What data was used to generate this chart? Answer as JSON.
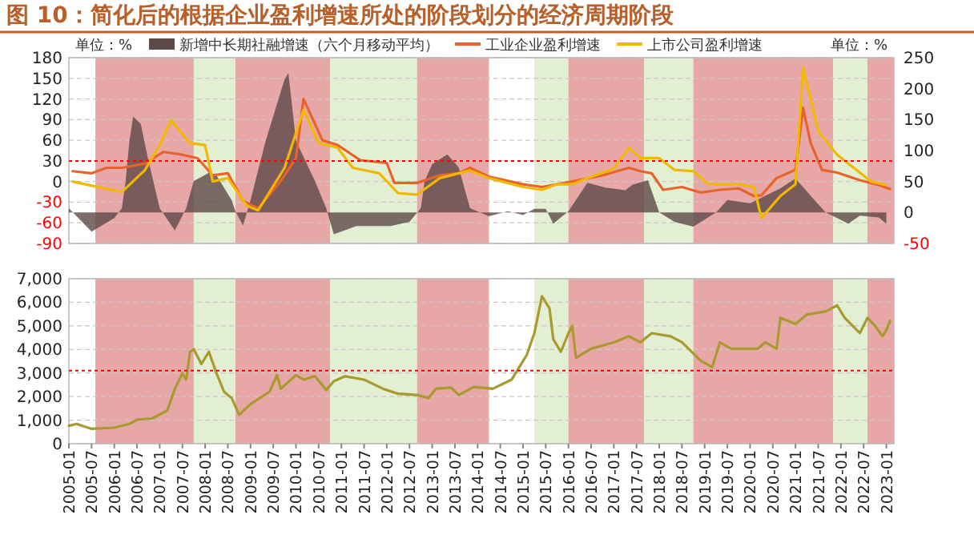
{
  "chart_data": [
    {
      "type": "area",
      "title": "图 10：简化后的根据企业盈利增速所处的阶段划分的经济周期阶段",
      "annotations": [
        "单位：%",
        "单位：%"
      ],
      "legend": "top",
      "grid": "y",
      "tick_labels": "y",
      "xlim": [
        "2005-01",
        "2023-03"
      ],
      "ylim": [
        -90,
        180
      ],
      "yticks": [
        -90,
        -60,
        -30,
        0,
        30,
        60,
        90,
        120,
        150,
        180
      ],
      "y2lim": [
        -50,
        250
      ],
      "y2ticks": [
        -50,
        0,
        50,
        100,
        150,
        200,
        250
      ],
      "series": [
        {
          "name": "新增中长期社融增速（六个月移动平均）",
          "axis": "y2",
          "color": "#5e4848",
          "x": [
            "2005-01",
            "2005-07",
            "2006-01",
            "2006-03",
            "2006-04",
            "2006-05",
            "2006-06",
            "2006-08",
            "2006-10",
            "2007-01",
            "2007-05",
            "2007-08",
            "2007-10",
            "2008-02",
            "2008-04",
            "2008-08",
            "2008-09",
            "2008-11",
            "2009-01",
            "2009-05",
            "2009-10",
            "2009-11",
            "2010-01",
            "2010-06",
            "2010-09",
            "2010-11",
            "2011-05",
            "2012-02",
            "2012-07",
            "2012-10",
            "2012-11",
            "2013-01",
            "2013-05",
            "2013-08",
            "2013-11",
            "2014-04",
            "2014-09",
            "2015-01",
            "2015-04",
            "2015-07",
            "2015-09",
            "2016-01",
            "2016-06",
            "2016-11",
            "2017-04",
            "2017-06",
            "2017-10",
            "2018-01",
            "2018-05",
            "2018-10",
            "2019-04",
            "2019-07",
            "2020-01",
            "2020-09",
            "2021-01",
            "2021-06",
            "2021-09",
            "2022-03",
            "2022-06",
            "2022-11",
            "2023-01"
          ],
          "values": [
            7,
            -31,
            -9,
            7,
            51,
            116,
            155,
            143,
            84,
            7,
            -29,
            7,
            51,
            64,
            60,
            20,
            2,
            -21,
            20,
            116,
            215,
            225,
            116,
            51,
            7,
            -35,
            -22,
            -22,
            -15,
            7,
            51,
            78,
            94,
            73,
            7,
            -6,
            2,
            -4,
            6,
            6,
            -18,
            2,
            48,
            40,
            36,
            45,
            52,
            0,
            -15,
            -23,
            0,
            20,
            15,
            39,
            55,
            20,
            0,
            -18,
            -5,
            -8,
            -18
          ]
        },
        {
          "name": "工业企业盈利增速",
          "type": "line",
          "axis": "y",
          "color": "#e8632a",
          "x": [
            "2005-02",
            "2005-07",
            "2005-11",
            "2006-03",
            "2006-09",
            "2007-02",
            "2007-06",
            "2007-11",
            "2008-03",
            "2008-07",
            "2008-11",
            "2009-03",
            "2009-09",
            "2010-01",
            "2010-03",
            "2010-08",
            "2010-12",
            "2011-06",
            "2012-01",
            "2012-03",
            "2012-09",
            "2013-03",
            "2013-08",
            "2013-11",
            "2014-04",
            "2015-01",
            "2015-06",
            "2016-02",
            "2016-10",
            "2017-05",
            "2017-08",
            "2017-11",
            "2018-02",
            "2018-07",
            "2018-12",
            "2019-05",
            "2019-10",
            "2020-02",
            "2020-04",
            "2020-08",
            "2021-01",
            "2021-03",
            "2021-05",
            "2021-08",
            "2021-12",
            "2022-06",
            "2022-11",
            "2023-02"
          ],
          "values": [
            15,
            12,
            20,
            20,
            26,
            43,
            40,
            34,
            9,
            12,
            -28,
            -39,
            1,
            34,
            120,
            60,
            53,
            31,
            27,
            -2,
            -2,
            9,
            12,
            20,
            7,
            -4,
            -8,
            0,
            9,
            20,
            15,
            12,
            -12,
            -8,
            -16,
            -12,
            -10,
            -21,
            -20,
            5,
            17,
            107,
            56,
            17,
            13,
            2,
            -5,
            -11
          ]
        },
        {
          "name": "上市公司盈利增速",
          "type": "line",
          "axis": "y",
          "color": "#f2b800",
          "x": [
            "2005-02",
            "2005-07",
            "2006-03",
            "2006-09",
            "2007-01",
            "2007-04",
            "2007-09",
            "2008-01",
            "2008-03",
            "2008-07",
            "2008-12",
            "2009-03",
            "2009-10",
            "2010-03",
            "2010-07",
            "2010-12",
            "2011-04",
            "2011-11",
            "2012-04",
            "2012-09",
            "2013-03",
            "2013-11",
            "2014-04",
            "2015-01",
            "2015-06",
            "2015-10",
            "2016-02",
            "2016-07",
            "2017-01",
            "2017-05",
            "2017-08",
            "2018-01",
            "2018-05",
            "2018-10",
            "2019-02",
            "2019-10",
            "2020-02",
            "2020-04",
            "2020-09",
            "2021-01",
            "2021-03",
            "2021-07",
            "2021-12",
            "2022-06",
            "2022-09",
            "2023-01"
          ],
          "values": [
            0,
            -6,
            -15,
            16,
            53,
            89,
            56,
            53,
            0,
            5,
            -35,
            -42,
            20,
            104,
            56,
            49,
            20,
            12,
            -17,
            -19,
            5,
            16,
            5,
            -8,
            -12,
            -4,
            -4,
            7,
            19,
            49,
            34,
            34,
            17,
            15,
            -4,
            -4,
            -8,
            -53,
            -21,
            -4,
            166,
            73,
            39,
            13,
            0,
            -5
          ]
        }
      ],
      "ref_lines": [
        {
          "axis": "y",
          "value": 30,
          "color": "#ff0000",
          "line_style": "dotted"
        }
      ],
      "bands": [
        {
          "axis": "x",
          "from": "2005-08",
          "to": "2007-10",
          "color": "#e8a7a7"
        },
        {
          "axis": "x",
          "from": "2007-10",
          "to": "2008-09",
          "color": "#e3efd3"
        },
        {
          "axis": "x",
          "from": "2008-09",
          "to": "2010-10",
          "color": "#e8a7a7"
        },
        {
          "axis": "x",
          "from": "2010-10",
          "to": "2012-09",
          "color": "#e3efd3"
        },
        {
          "axis": "x",
          "from": "2012-09",
          "to": "2014-04",
          "color": "#e8a7a7"
        },
        {
          "axis": "x",
          "from": "2015-04",
          "to": "2016-01",
          "color": "#e3efd3"
        },
        {
          "axis": "x",
          "from": "2016-01",
          "to": "2017-09",
          "color": "#e8a7a7"
        },
        {
          "axis": "x",
          "from": "2017-09",
          "to": "2018-10",
          "color": "#e3efd3"
        },
        {
          "axis": "x",
          "from": "2018-10",
          "to": "2021-11",
          "color": "#e8a7a7"
        },
        {
          "axis": "x",
          "from": "2021-11",
          "to": "2022-08",
          "color": "#e3efd3"
        },
        {
          "axis": "x",
          "from": "2022-08",
          "to": "2023-03",
          "color": "#e8a7a7"
        }
      ]
    },
    {
      "type": "line",
      "grid": "y",
      "xlim": [
        "2005-01",
        "2023-03"
      ],
      "ylim": [
        0,
        7000
      ],
      "yticks": [
        0,
        {
          "value": 1000,
          "label": "1,000"
        },
        {
          "value": 2000,
          "label": "2,000"
        },
        {
          "value": 3000,
          "label": "3,000"
        },
        {
          "value": 4000,
          "label": "4,000"
        },
        {
          "value": 5000,
          "label": "5,000"
        },
        {
          "value": 6000,
          "label": "6,000"
        },
        {
          "value": 7000,
          "label": "7,000"
        }
      ],
      "xticks": [
        {
          "value": "2005-01",
          "label": "2005-01"
        },
        {
          "value": "2005-07",
          "label": "2005-07"
        },
        {
          "value": "2006-01",
          "label": "2006-01"
        },
        {
          "value": "2006-07",
          "label": "2006-07"
        },
        {
          "value": "2007-01",
          "label": "2007-01"
        },
        {
          "value": "2007-07",
          "label": "2007-07"
        },
        {
          "value": "2008-01",
          "label": "2008-01"
        },
        {
          "value": "2008-07",
          "label": "2008-07"
        },
        {
          "value": "2009-01",
          "label": "2009-01"
        },
        {
          "value": "2009-07",
          "label": "2009-07"
        },
        {
          "value": "2010-01",
          "label": "2010-01"
        },
        {
          "value": "2010-07",
          "label": "2010-07"
        },
        {
          "value": "2011-01",
          "label": "2011-01"
        },
        {
          "value": "2011-07",
          "label": "2011-07"
        },
        {
          "value": "2012-01",
          "label": "2012-01"
        },
        {
          "value": "2012-07",
          "label": "2012-07"
        },
        {
          "value": "2013-01",
          "label": "2013-01"
        },
        {
          "value": "2013-07",
          "label": "2013-07"
        },
        {
          "value": "2014-01",
          "label": "2014-01"
        },
        {
          "value": "2014-07",
          "label": "2014-07"
        },
        {
          "value": "2015-01",
          "label": "2015-01"
        },
        {
          "value": "2015-07",
          "label": "2015-07"
        },
        {
          "value": "2016-01",
          "label": "2016-01"
        },
        {
          "value": "2016-07",
          "label": "2016-07"
        },
        {
          "value": "2017-01",
          "label": "2017-01"
        },
        {
          "value": "2017-07",
          "label": "2017-07"
        },
        {
          "value": "2018-01",
          "label": "2018-01"
        },
        {
          "value": "2018-07",
          "label": "2018-07"
        },
        {
          "value": "2019-01",
          "label": "2019-01"
        },
        {
          "value": "2019-07",
          "label": "2019-07"
        },
        {
          "value": "2020-01",
          "label": "2020-01"
        },
        {
          "value": "2020-07",
          "label": "2020-07"
        },
        {
          "value": "2021-01",
          "label": "2021-01"
        },
        {
          "value": "2021-07",
          "label": "2021-07"
        },
        {
          "value": "2022-01",
          "label": "2022-01"
        },
        {
          "value": "2022-07",
          "label": "2022-07"
        },
        {
          "value": "2023-01",
          "label": "2023-01"
        }
      ],
      "series": [
        {
          "color": "#a89a2e",
          "x": [
            "2005-01",
            "2005-03",
            "2005-07",
            "2006-01",
            "2006-05",
            "2006-07",
            "2006-11",
            "2007-03",
            "2007-05",
            "2007-07",
            "2007-08",
            "2007-09",
            "2007-10",
            "2007-12",
            "2008-02",
            "2008-04",
            "2008-06",
            "2008-08",
            "2008-10",
            "2009-01",
            "2009-06",
            "2009-08",
            "2009-09",
            "2010-01",
            "2010-03",
            "2010-06",
            "2010-09",
            "2010-11",
            "2011-02",
            "2011-07",
            "2011-12",
            "2012-04",
            "2012-09",
            "2012-12",
            "2013-02",
            "2013-06",
            "2013-08",
            "2013-12",
            "2014-05",
            "2014-10",
            "2015-02",
            "2015-04",
            "2015-06",
            "2015-08",
            "2015-09",
            "2015-11",
            "2016-01",
            "2016-02",
            "2016-03",
            "2016-07",
            "2017-01",
            "2017-05",
            "2017-08",
            "2017-11",
            "2018-04",
            "2018-07",
            "2018-12",
            "2019-03",
            "2019-05",
            "2019-08",
            "2020-03",
            "2020-05",
            "2020-08",
            "2020-09",
            "2021-01",
            "2021-04",
            "2021-09",
            "2021-12",
            "2022-02",
            "2022-06",
            "2022-08",
            "2022-10",
            "2022-12",
            "2023-01",
            "2023-02"
          ],
          "values": [
            760,
            840,
            630,
            680,
            840,
            1020,
            1070,
            1410,
            2330,
            2990,
            2720,
            3900,
            4010,
            3380,
            3900,
            2990,
            2200,
            1940,
            1230,
            1680,
            2200,
            2910,
            2330,
            2910,
            2720,
            2860,
            2280,
            2650,
            2860,
            2720,
            2330,
            2120,
            2070,
            1940,
            2330,
            2380,
            2070,
            2410,
            2330,
            2720,
            3770,
            4690,
            6260,
            5740,
            4430,
            3900,
            4690,
            5000,
            3640,
            4030,
            4300,
            4560,
            4300,
            4690,
            4560,
            4300,
            3510,
            3250,
            4300,
            4030,
            4030,
            4300,
            4030,
            5340,
            5080,
            5480,
            5610,
            5870,
            5340,
            4690,
            5340,
            5000,
            4560,
            4820,
            5210
          ]
        }
      ],
      "ref_lines": [
        {
          "axis": "y",
          "value": 3100,
          "color": "#ff0000",
          "line_style": "dotted"
        }
      ],
      "bands": [
        {
          "axis": "x",
          "from": "2005-08",
          "to": "2007-10",
          "color": "#e8a7a7"
        },
        {
          "axis": "x",
          "from": "2007-10",
          "to": "2008-09",
          "color": "#e3efd3"
        },
        {
          "axis": "x",
          "from": "2008-09",
          "to": "2010-10",
          "color": "#e8a7a7"
        },
        {
          "axis": "x",
          "from": "2010-10",
          "to": "2012-09",
          "color": "#e3efd3"
        },
        {
          "axis": "x",
          "from": "2012-09",
          "to": "2014-04",
          "color": "#e8a7a7"
        },
        {
          "axis": "x",
          "from": "2015-04",
          "to": "2016-01",
          "color": "#e3efd3"
        },
        {
          "axis": "x",
          "from": "2016-01",
          "to": "2017-09",
          "color": "#e8a7a7"
        },
        {
          "axis": "x",
          "from": "2017-09",
          "to": "2018-10",
          "color": "#e3efd3"
        },
        {
          "axis": "x",
          "from": "2018-10",
          "to": "2021-11",
          "color": "#e8a7a7"
        },
        {
          "axis": "x",
          "from": "2021-11",
          "to": "2022-08",
          "color": "#e3efd3"
        },
        {
          "axis": "x",
          "from": "2022-08",
          "to": "2023-03",
          "color": "#e8a7a7"
        }
      ]
    }
  ]
}
